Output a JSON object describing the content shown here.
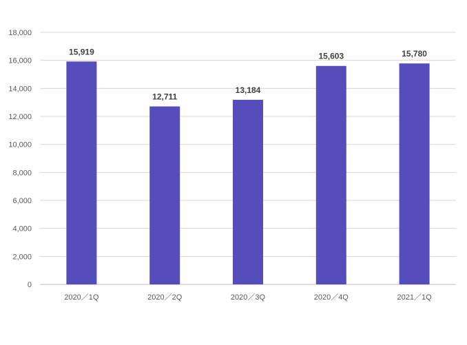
{
  "chart_data": {
    "type": "bar",
    "title": "",
    "xlabel": "",
    "ylabel": "",
    "categories": [
      "2020／1Q",
      "2020／2Q",
      "2020／3Q",
      "2020／4Q",
      "2021／1Q"
    ],
    "values": [
      15919,
      12711,
      13184,
      15603,
      15780
    ],
    "value_labels": [
      "15,919",
      "12,711",
      "13,184",
      "15,603",
      "15,780"
    ],
    "ylim": [
      0,
      18000
    ],
    "y_ticks": [
      "0",
      "2,000",
      "4,000",
      "6,000",
      "8,000",
      "10,000",
      "12,000",
      "14,000",
      "16,000",
      "18,000"
    ],
    "grid": true,
    "legend": "none",
    "colors": {
      "bar": "#544dbb",
      "grid": "#d9d9d9",
      "axis": "#bfbfbf"
    }
  }
}
